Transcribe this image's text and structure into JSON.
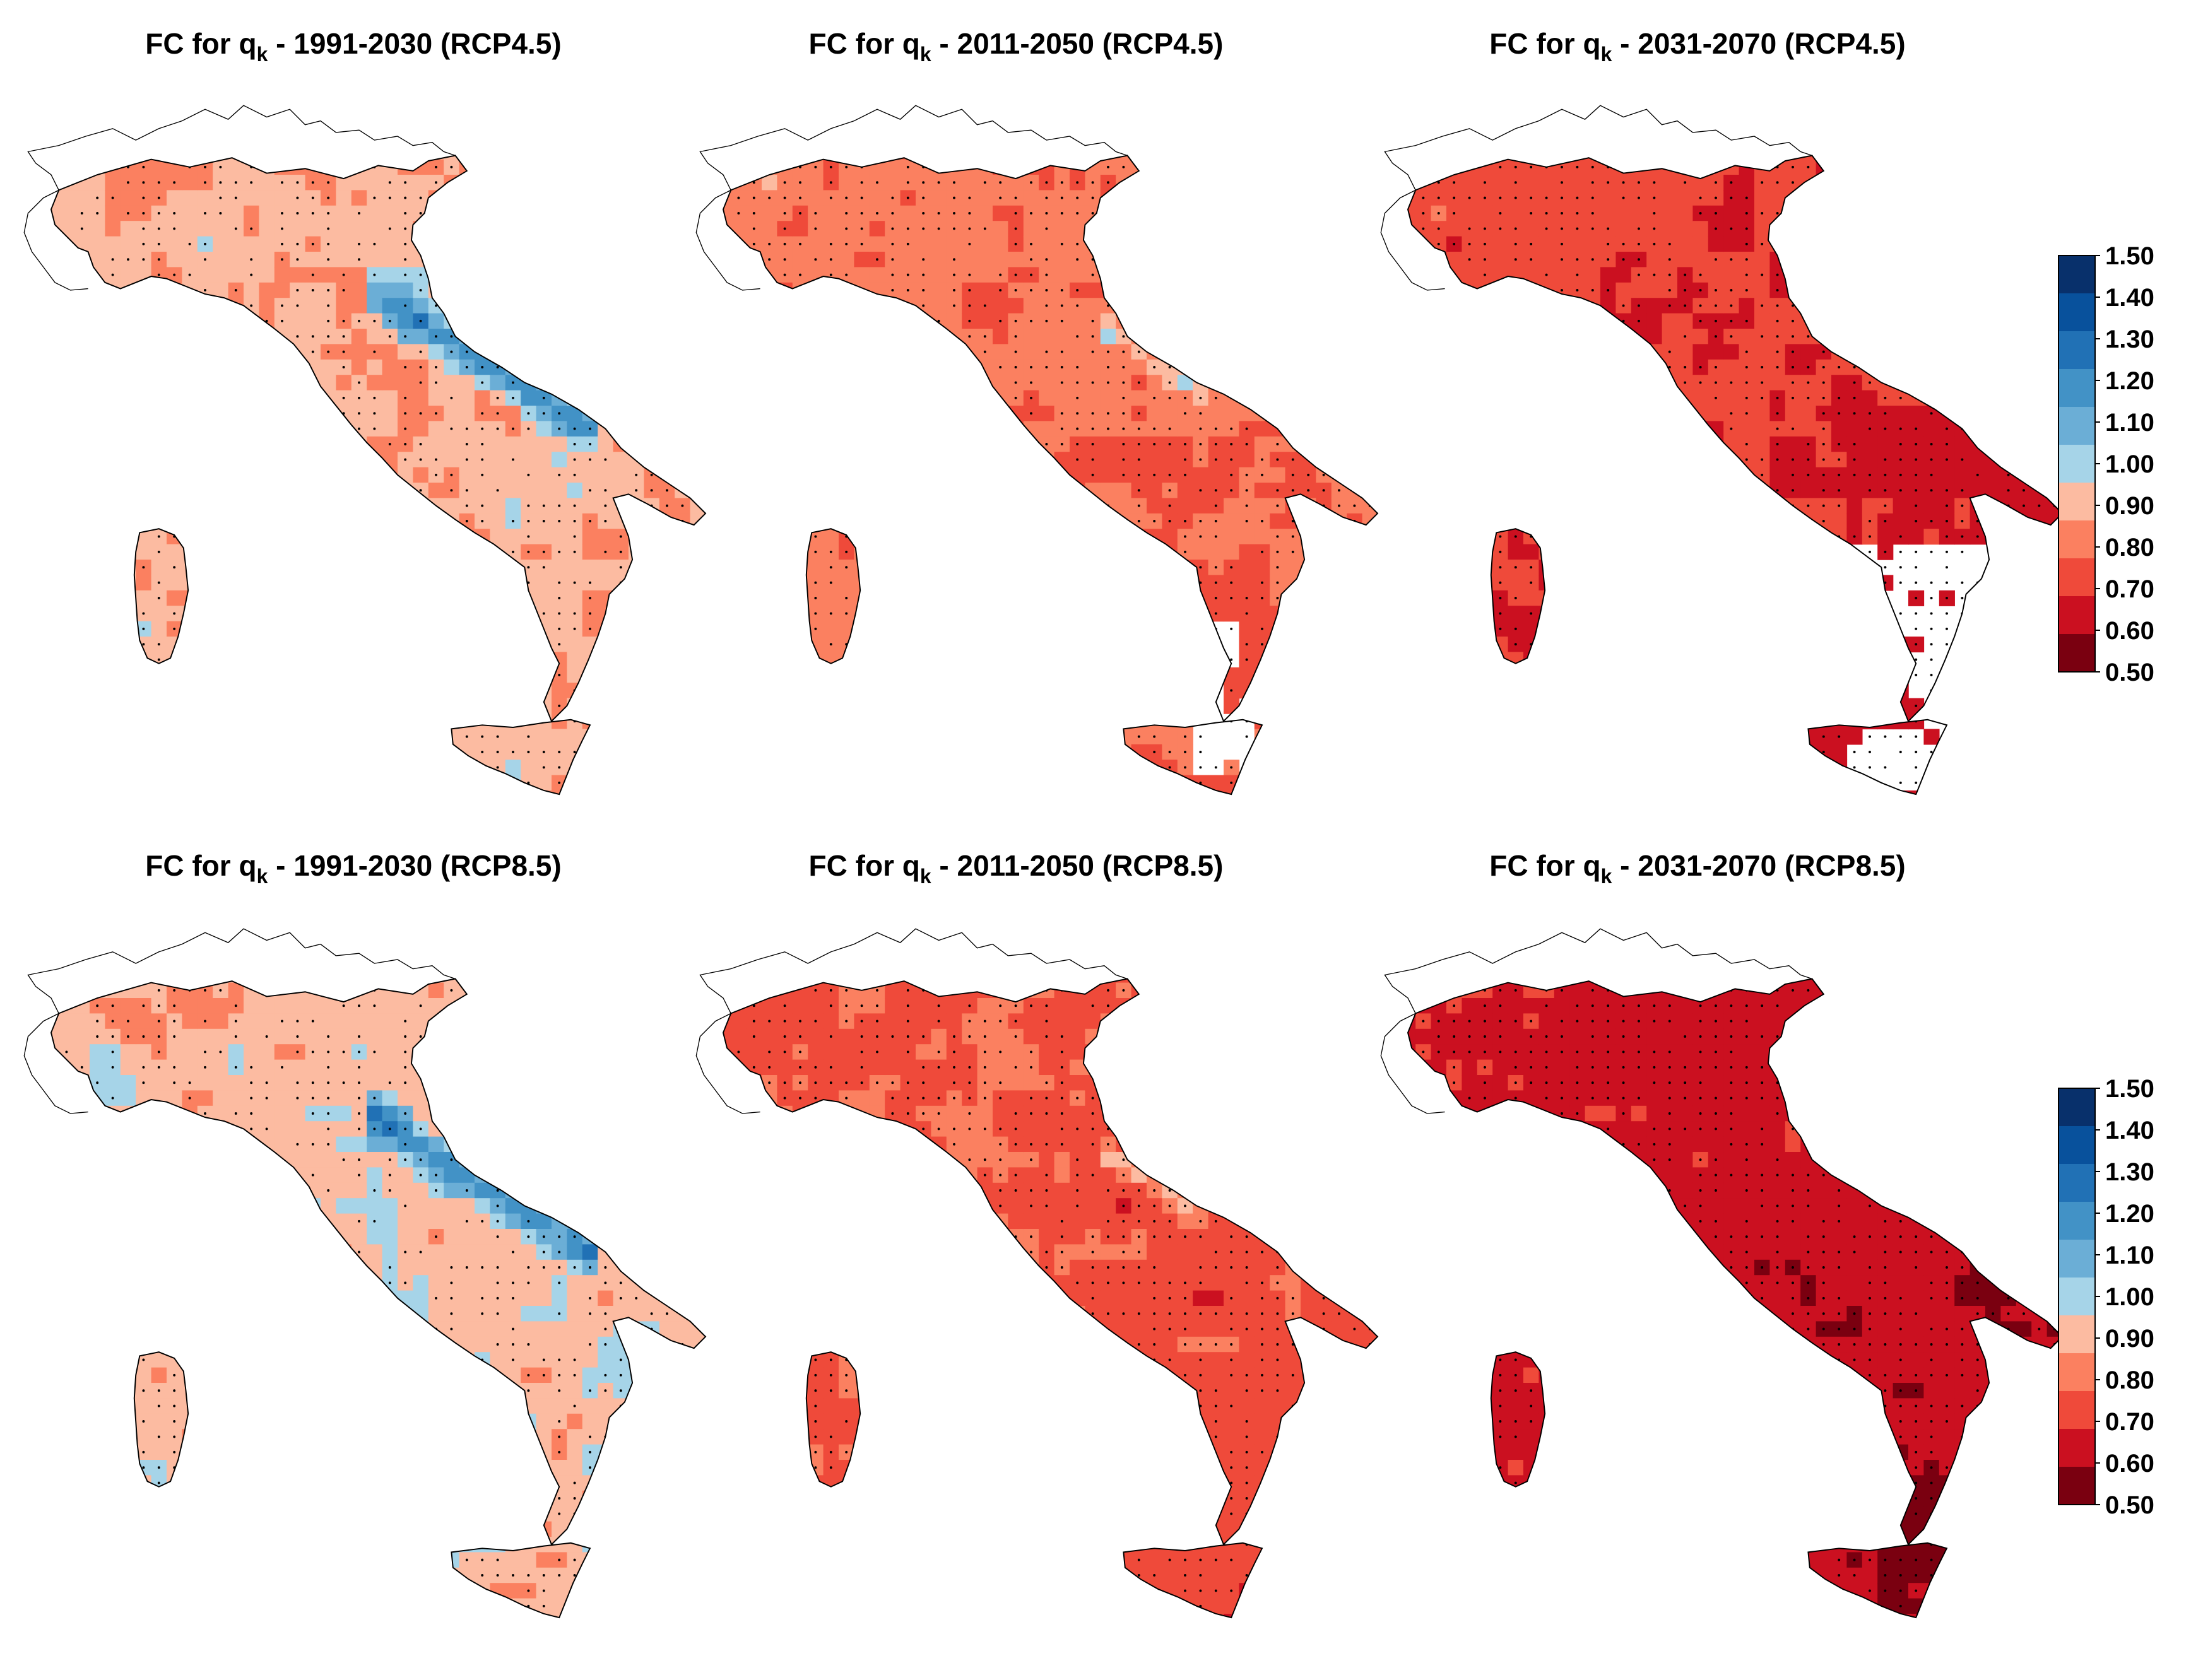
{
  "panels": [
    {
      "title_prefix": "FC for q",
      "title_sub": "k",
      "title_suffix": " - 1991-2030 (RCP4.5)",
      "row": 0,
      "col": 0,
      "base": 0.83,
      "spread": 0.4,
      "dot": 0.55
    },
    {
      "title_prefix": "FC for q",
      "title_sub": "k",
      "title_suffix": " - 2011-2050 (RCP4.5)",
      "row": 0,
      "col": 1,
      "base": 0.74,
      "spread": 0.28,
      "dot": 0.65
    },
    {
      "title_prefix": "FC for q",
      "title_sub": "k",
      "title_suffix": " - 2031-2070 (RCP4.5)",
      "row": 0,
      "col": 2,
      "base": 0.66,
      "spread": 0.25,
      "dot": 0.72
    },
    {
      "title_prefix": "FC for q",
      "title_sub": "k",
      "title_suffix": " - 1991-2030 (RCP8.5)",
      "row": 1,
      "col": 0,
      "base": 0.85,
      "spread": 0.42,
      "dot": 0.5
    },
    {
      "title_prefix": "FC for q",
      "title_sub": "k",
      "title_suffix": " - 2011-2050 (RCP8.5)",
      "row": 1,
      "col": 1,
      "base": 0.7,
      "spread": 0.28,
      "dot": 0.68
    },
    {
      "title_prefix": "FC for q",
      "title_sub": "k",
      "title_suffix": " - 2031-2070 (RCP8.5)",
      "row": 1,
      "col": 2,
      "base": 0.6,
      "spread": 0.22,
      "dot": 0.78
    }
  ],
  "colorbar": {
    "ticks": [
      "1.50",
      "1.40",
      "1.30",
      "1.20",
      "1.10",
      "1.00",
      "0.90",
      "0.80",
      "0.70",
      "0.60",
      "0.50"
    ],
    "colors_top_to_bottom": [
      "#08306b",
      "#08519c",
      "#2171b5",
      "#4292c6",
      "#6baed6",
      "#a6d4e8",
      "#fcbba1",
      "#fb8060",
      "#ef4a3a",
      "#cb1020",
      "#7a0010"
    ]
  },
  "colors": {
    "coast": "#000000",
    "border": "#000000",
    "stipple": "#000000"
  }
}
